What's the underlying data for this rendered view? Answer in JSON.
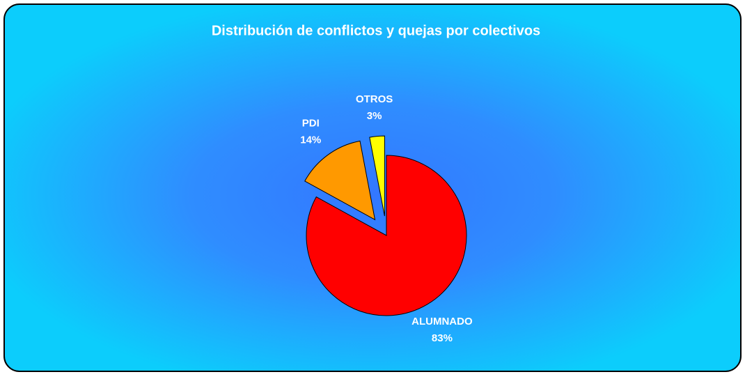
{
  "chart_data": {
    "type": "pie",
    "title": "Distribución de conflictos y quejas por colectivos",
    "categories": [
      "ALUMNADO",
      "PDI",
      "OTROS"
    ],
    "values": [
      83,
      14,
      3
    ],
    "value_labels": [
      "83%",
      "14%",
      "3%"
    ],
    "colors": [
      "#ff0000",
      "#ff9900",
      "#ffff00"
    ]
  }
}
